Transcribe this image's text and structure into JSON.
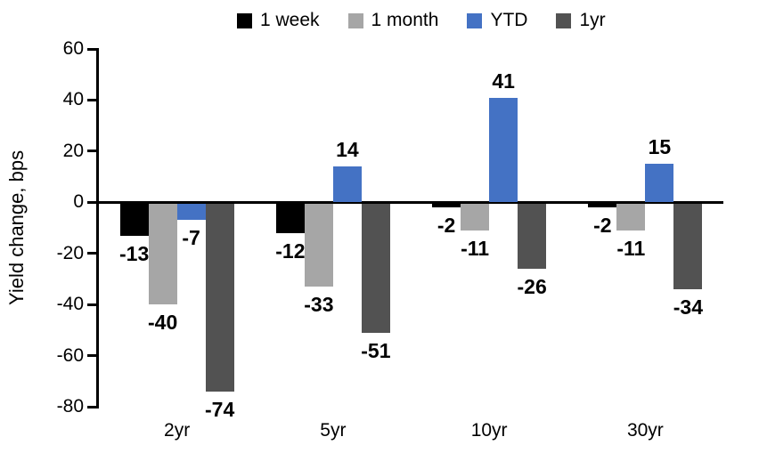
{
  "chart_data": {
    "type": "bar",
    "title": "",
    "ylabel": "Yield change, bps",
    "xlabel": "",
    "categories": [
      "2yr",
      "5yr",
      "10yr",
      "30yr"
    ],
    "series": [
      {
        "name": "1 week",
        "color": "#000000",
        "values": [
          -13,
          -12,
          -2,
          -2
        ]
      },
      {
        "name": "1 month",
        "color": "#A6A6A6",
        "values": [
          -40,
          -33,
          -11,
          -11
        ]
      },
      {
        "name": "YTD",
        "color": "#4472C4",
        "values": [
          -7,
          14,
          41,
          15
        ]
      },
      {
        "name": "1yr",
        "color": "#525252",
        "values": [
          -74,
          -51,
          -26,
          -34
        ]
      }
    ],
    "ylim": [
      -80,
      60
    ],
    "yticks": [
      60,
      40,
      20,
      0,
      -20,
      -40,
      -60,
      -80
    ],
    "legend_position": "top",
    "grid": false,
    "data_labels": true,
    "axis_color": "#000000",
    "background_color": "#FFFFFF"
  }
}
